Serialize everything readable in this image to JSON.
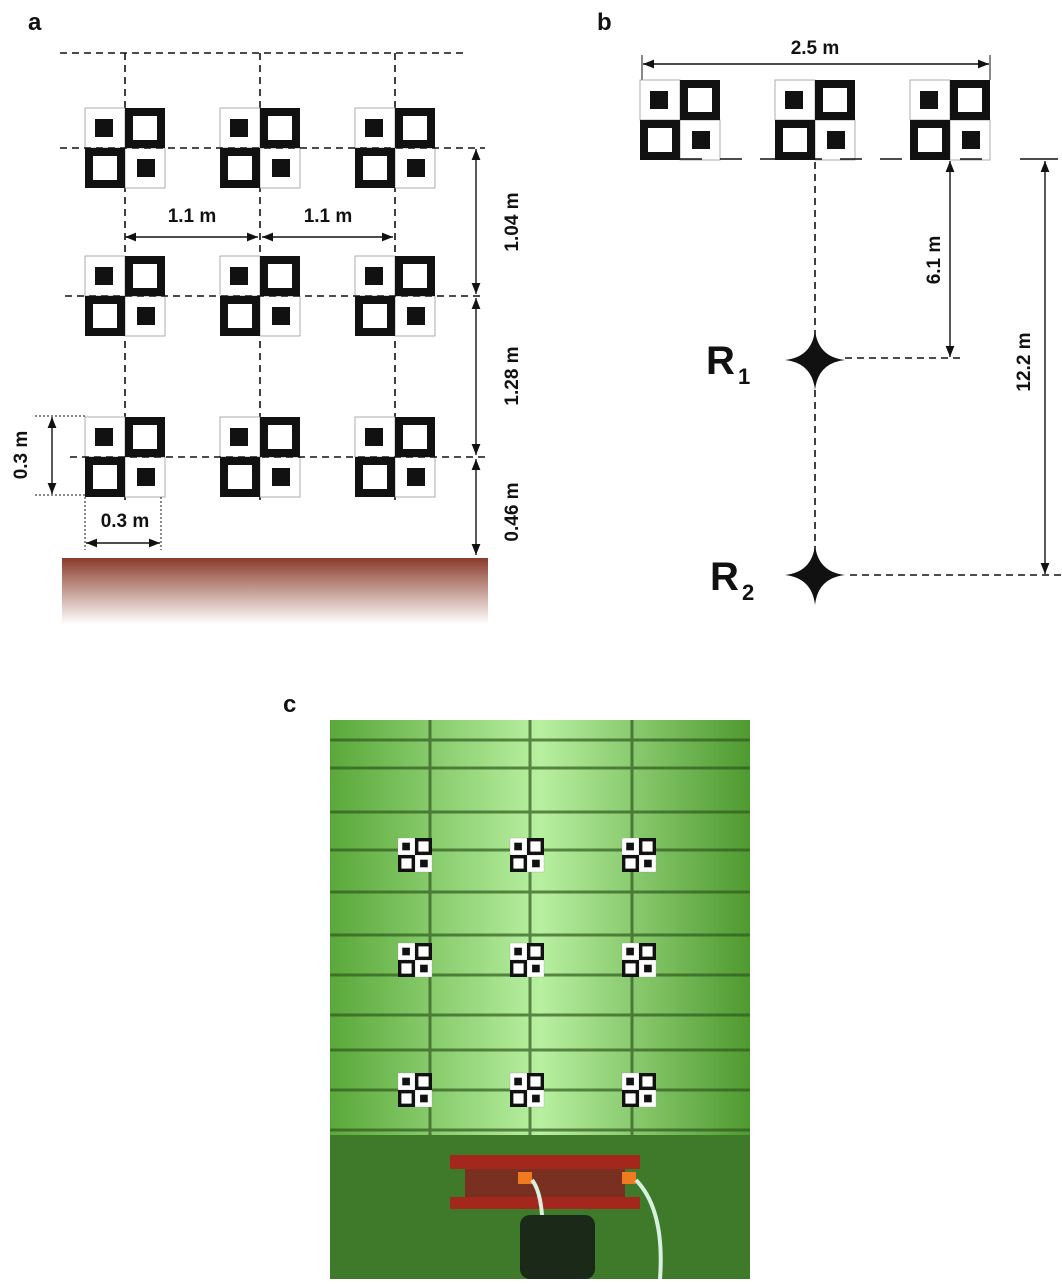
{
  "panels": [
    {
      "label": "a",
      "dimensions": [
        "1.1 m",
        "1.1 m",
        "1.04 m",
        "1.28 m",
        "0.46 m",
        "0.3 m",
        "0.3 m"
      ]
    },
    {
      "label": "b",
      "dimensions": [
        "2.5 m",
        "6.1 m",
        "12.2 m"
      ],
      "receivers": [
        {
          "label": "R",
          "subscript": "1"
        },
        {
          "label": "R",
          "subscript": "2"
        }
      ]
    },
    {
      "label": "c"
    }
  ]
}
